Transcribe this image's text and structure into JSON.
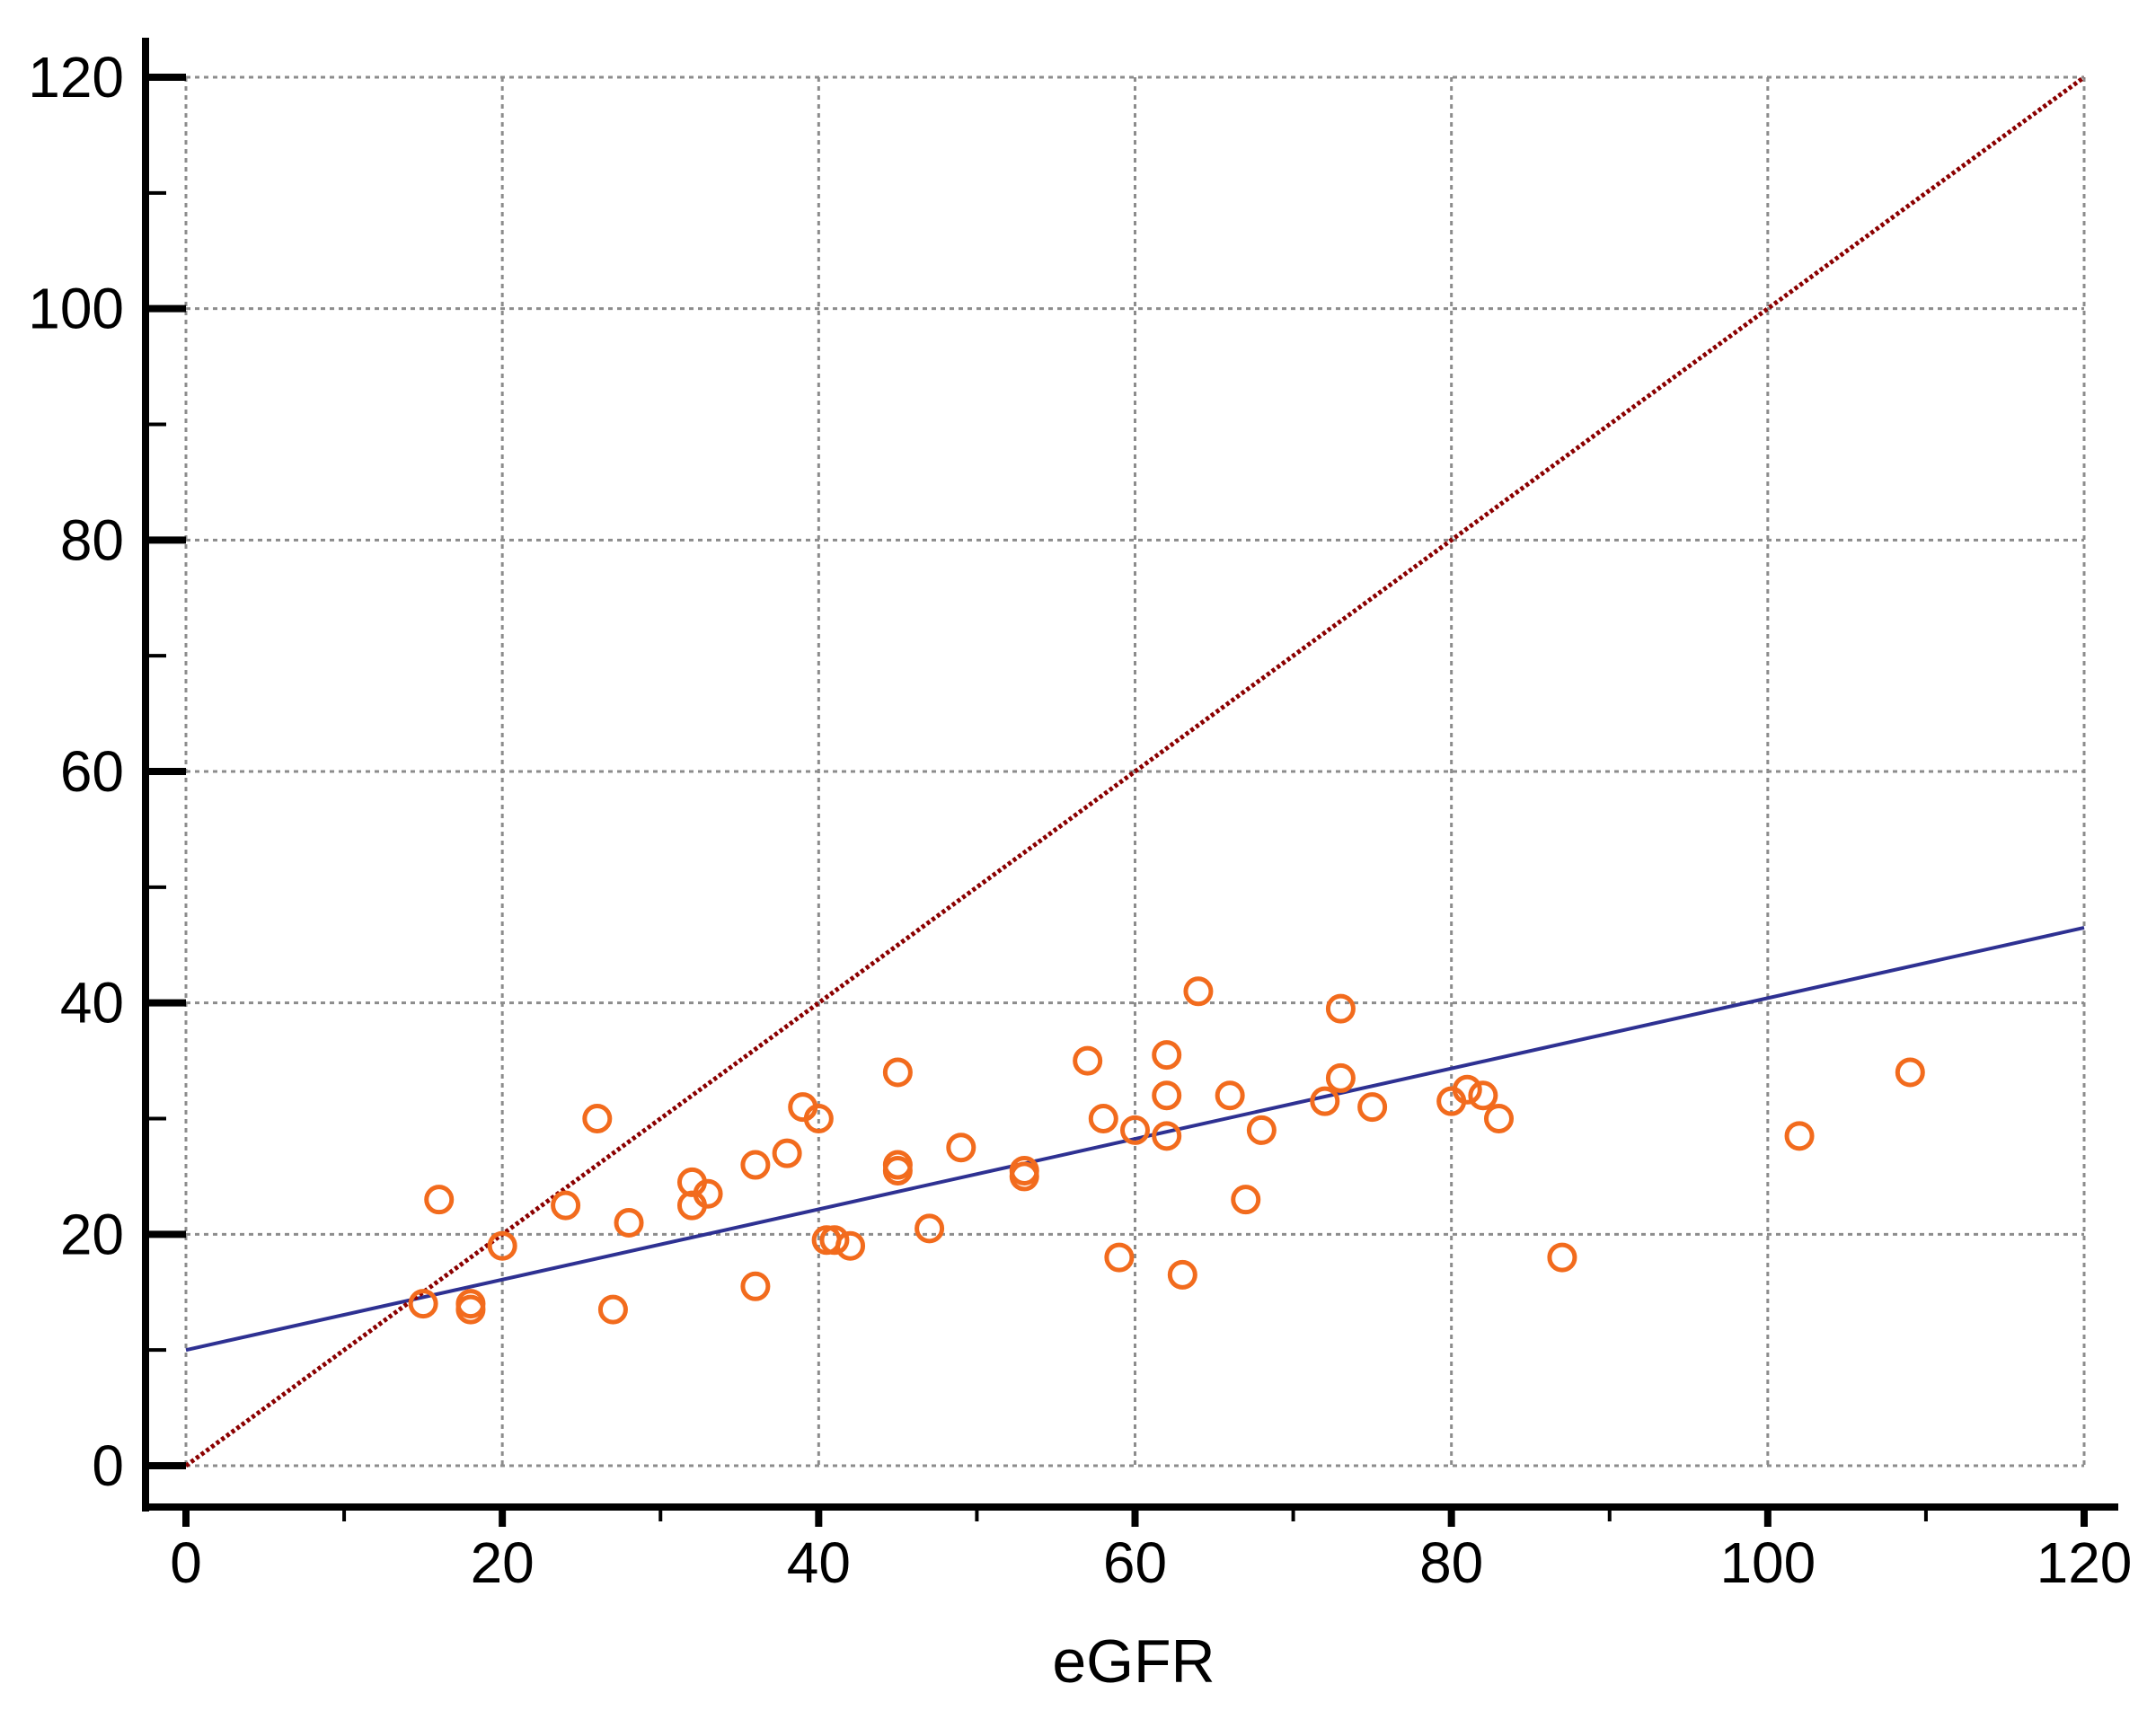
{
  "chart_data": {
    "type": "scatter",
    "title": "",
    "xlabel": "eGFR",
    "ylabel": "",
    "xlim": [
      0,
      120
    ],
    "ylim": [
      0,
      120
    ],
    "xticks": [
      "0",
      "20",
      "40",
      "60",
      "80",
      "100",
      "120"
    ],
    "yticks": [
      "0",
      "20",
      "40",
      "60",
      "80",
      "100",
      "120"
    ],
    "grid": true,
    "legend": "none",
    "series": [
      {
        "type": "scatter",
        "color": "#f26b1d",
        "marker": "open-circle",
        "points": [
          [
            15,
            14
          ],
          [
            16,
            23
          ],
          [
            18,
            14
          ],
          [
            18,
            13.5
          ],
          [
            20,
            19
          ],
          [
            24,
            22.5
          ],
          [
            26,
            30
          ],
          [
            27,
            13.5
          ],
          [
            28,
            21
          ],
          [
            32,
            24.5
          ],
          [
            32,
            22.5
          ],
          [
            33,
            23.5
          ],
          [
            36,
            26
          ],
          [
            36,
            15.5
          ],
          [
            38,
            27
          ],
          [
            39,
            31
          ],
          [
            40,
            30
          ],
          [
            40.5,
            19.5
          ],
          [
            41,
            19.5
          ],
          [
            42,
            19
          ],
          [
            45,
            34
          ],
          [
            45,
            26
          ],
          [
            45,
            25.5
          ],
          [
            47,
            20.5
          ],
          [
            49,
            27.5
          ],
          [
            53,
            25.5
          ],
          [
            53,
            25
          ],
          [
            57,
            35
          ],
          [
            58,
            30
          ],
          [
            59,
            18
          ],
          [
            60,
            29
          ],
          [
            62,
            35.5
          ],
          [
            62,
            32
          ],
          [
            62,
            28.5
          ],
          [
            63,
            16.5
          ],
          [
            64,
            41
          ],
          [
            66,
            32
          ],
          [
            67,
            23
          ],
          [
            68,
            29
          ],
          [
            72,
            31.5
          ],
          [
            73,
            39.5
          ],
          [
            73,
            33.5
          ],
          [
            75,
            31
          ],
          [
            80,
            31.5
          ],
          [
            81,
            32.5
          ],
          [
            82,
            32
          ],
          [
            83,
            30
          ],
          [
            87,
            18
          ],
          [
            102,
            28.5
          ],
          [
            109,
            34
          ]
        ]
      },
      {
        "type": "line",
        "style": "solid",
        "color": "#2e3192",
        "x": [
          0,
          120
        ],
        "y": [
          10,
          46.5
        ]
      },
      {
        "type": "line",
        "style": "dotted",
        "color": "#8b0000",
        "x": [
          0,
          120
        ],
        "y": [
          0,
          120
        ]
      }
    ]
  }
}
